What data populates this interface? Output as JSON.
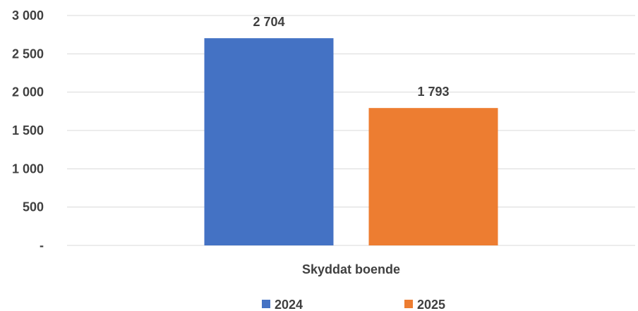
{
  "chart_data": {
    "type": "bar",
    "categories": [
      "Skyddat boende"
    ],
    "series": [
      {
        "name": "2024",
        "values": [
          2704
        ],
        "value_labels": [
          "2 704"
        ],
        "color": "#4472C4"
      },
      {
        "name": "2025",
        "values": [
          1793
        ],
        "value_labels": [
          "1 793"
        ],
        "color": "#ED7D31"
      }
    ],
    "ylim": [
      0,
      3000
    ],
    "y_ticks": [
      {
        "value": 0,
        "label": "-"
      },
      {
        "value": 500,
        "label": "500"
      },
      {
        "value": 1000,
        "label": "1 000"
      },
      {
        "value": 1500,
        "label": "1 500"
      },
      {
        "value": 2000,
        "label": "2 000"
      },
      {
        "value": 2500,
        "label": "2 500"
      },
      {
        "value": 3000,
        "label": "3 000"
      }
    ],
    "grid": true,
    "legend_position": "bottom",
    "title": "",
    "xlabel": "",
    "ylabel": ""
  }
}
